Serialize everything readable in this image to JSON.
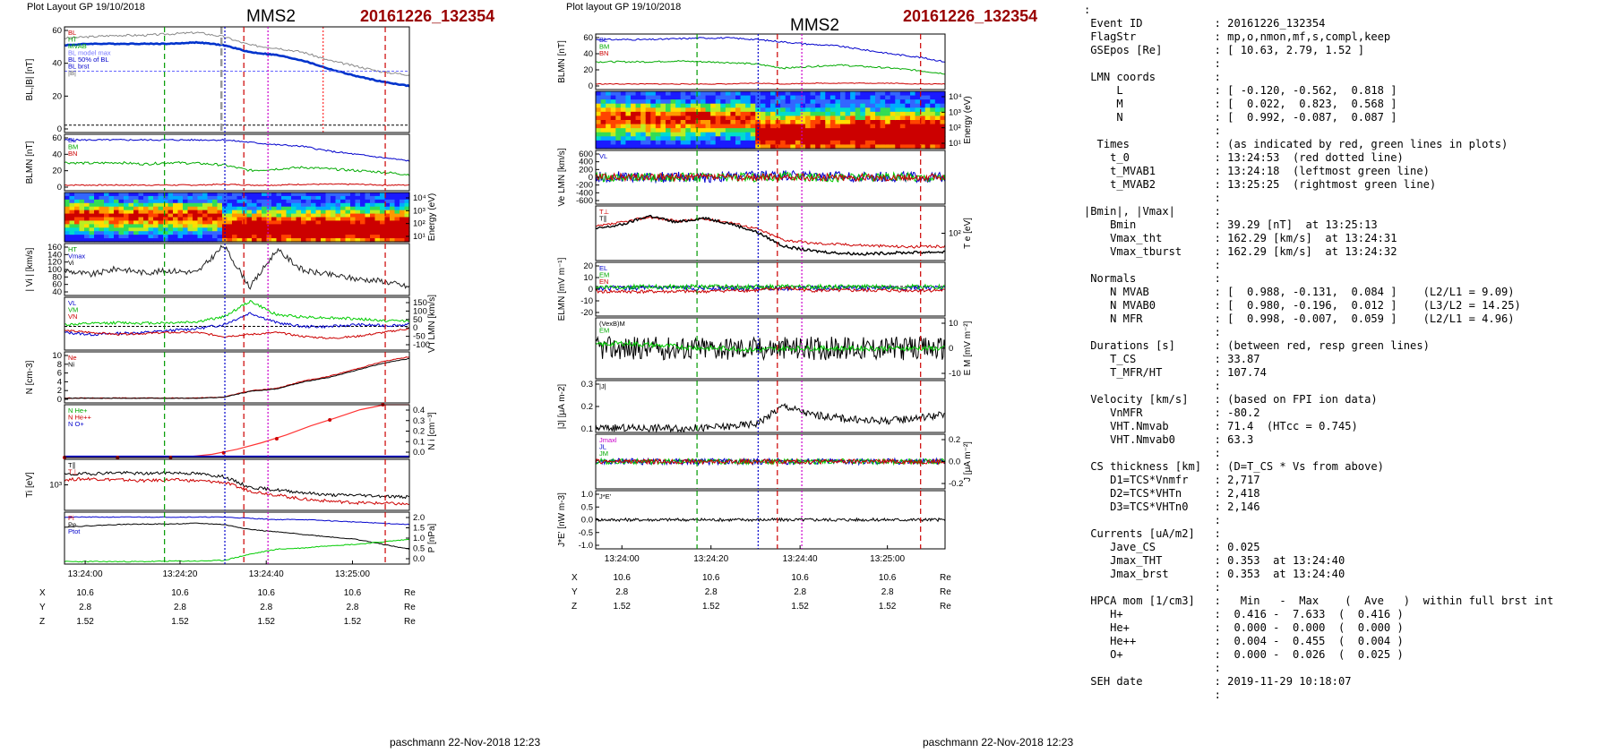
{
  "left": {
    "plot_layout": "Plot Layout GP 19/10/2018",
    "spacecraft": "MMS2",
    "event": "20161226_132354",
    "footer": "paschmann 22-Nov-2018 12:23",
    "panels": [
      {
        "ylabels": [
          "B",
          "L",
          ",|B| [nT]"
        ],
        "left_ticks": [
          "60",
          "40",
          "20",
          "0"
        ],
        "right_ticks": [],
        "legend": [
          {
            "text": "BL",
            "color": "#cc0000"
          },
          {
            "text": "HT",
            "color": "#009900"
          },
          {
            "text": "MVAB",
            "color": "#00aa00"
          },
          {
            "text": "BL model max",
            "color": "#7777ff"
          },
          {
            "text": "BL 50% of BL",
            "color": "#0000cc"
          },
          {
            "text": "BL brst",
            "color": "#0000cc"
          },
          {
            "text": "|B|",
            "color": "#666666"
          }
        ]
      },
      {
        "ylabels": [
          "B",
          "LMN",
          " [nT]"
        ],
        "left_ticks": [
          "60",
          "40",
          "20",
          "0"
        ],
        "right_ticks": [],
        "legend": [
          {
            "text": "BL",
            "color": "#0000cc"
          },
          {
            "text": "BM",
            "color": "#00aa00"
          },
          {
            "text": "BN",
            "color": "#cc0000"
          }
        ]
      },
      {
        "ylabels": [],
        "left_ticks": [],
        "right_ticks": [
          "10⁴",
          "10³",
          "10²",
          "10¹"
        ],
        "right_label": "Energy (eV)",
        "legend": []
      },
      {
        "ylabels": [
          "| V",
          "i",
          " | [km/s]"
        ],
        "left_ticks": [
          "160",
          "140",
          "120",
          "100",
          "80",
          "60",
          "40"
        ],
        "right_ticks": [],
        "legend": [
          {
            "text": "HT",
            "color": "#009900"
          },
          {
            "text": "Vmax",
            "color": "#0000cc"
          },
          {
            "text": "Vi",
            "color": "#000000"
          }
        ]
      },
      {
        "ylabels": [],
        "left_ticks": [],
        "right_ticks": [
          "150",
          "100",
          "50",
          "0",
          "-50",
          "-100"
        ],
        "right_label": "V i LMN [km/s]",
        "legend": [
          {
            "text": "VL",
            "color": "#0000cc"
          },
          {
            "text": "VM",
            "color": "#00aa00"
          },
          {
            "text": "VN",
            "color": "#cc0000"
          }
        ]
      },
      {
        "ylabels": [
          "N [cm",
          "-3",
          "]"
        ],
        "left_ticks": [
          "10",
          "8",
          "6",
          "4",
          "2",
          "0"
        ],
        "right_ticks": [],
        "legend": [
          {
            "text": "Ne",
            "color": "#cc0000"
          },
          {
            "text": "Ni",
            "color": "#000000"
          }
        ]
      },
      {
        "ylabels": [],
        "left_ticks": [],
        "right_ticks": [
          "0.4",
          "0.3",
          "0.2",
          "0.1",
          "0.0"
        ],
        "right_label": "N i [cm⁻³]",
        "legend": [
          {
            "text": "N He+",
            "color": "#00aa00"
          },
          {
            "text": "N He++",
            "color": "#cc0000"
          },
          {
            "text": "N O+",
            "color": "#0000cc"
          }
        ]
      },
      {
        "ylabels": [
          "T",
          "i",
          " [eV]"
        ],
        "left_ticks": [
          "10³"
        ],
        "right_ticks": [],
        "legend": [
          {
            "text": "T∥",
            "color": "#000000"
          },
          {
            "text": "T⊥",
            "color": "#cc0000"
          }
        ]
      },
      {
        "ylabels": [],
        "left_ticks": [],
        "right_ticks": [
          "2.0",
          "1.5",
          "1.0",
          "0.5",
          "0.0"
        ],
        "right_label": "P [nPa]",
        "legend": [
          {
            "text": "Pi",
            "color": "#cc0000"
          },
          {
            "text": "Pe",
            "color": "#000000"
          },
          {
            "text": "Ptot",
            "color": "#0000cc"
          }
        ]
      }
    ],
    "time_ticks": [
      "13:24:00",
      "13:24:20",
      "13:24:40",
      "13:25:00"
    ],
    "pos": {
      "labels": [
        "X",
        "Y",
        "Z"
      ],
      "rows": [
        [
          "10.6",
          "10.6",
          "10.6",
          "10.6"
        ],
        [
          "2.8",
          "2.8",
          "2.8",
          "2.8"
        ],
        [
          "1.52",
          "1.52",
          "1.52",
          "1.52"
        ]
      ],
      "unit": "Re"
    }
  },
  "middle": {
    "plot_layout": "Plot layout GP 19/10/2018",
    "spacecraft": "MMS2",
    "event": "20161226_132354",
    "footer": "paschmann 22-Nov-2018 12:23",
    "panels": [
      {
        "ylabels": [
          "B",
          "LMN",
          " [nT]"
        ],
        "left_ticks": [
          "60",
          "40",
          "20",
          "0"
        ],
        "right_ticks": [],
        "legend": [
          {
            "text": "BL",
            "color": "#0000cc"
          },
          {
            "text": "BM",
            "color": "#00aa00"
          },
          {
            "text": "BN",
            "color": "#cc0000"
          }
        ]
      },
      {
        "ylabels": [],
        "left_ticks": [],
        "right_ticks": [
          "10⁴",
          "10³",
          "10²",
          "10¹"
        ],
        "right_label": "Energy (eV)",
        "legend": []
      },
      {
        "ylabels": [
          "V",
          "e LMN",
          " [km/s]"
        ],
        "left_ticks": [
          "600",
          "400",
          "200",
          "0",
          "-200",
          "-400",
          "-600"
        ],
        "right_ticks": [],
        "legend": [
          {
            "text": "VL",
            "color": "#0000cc"
          }
        ]
      },
      {
        "ylabels": [],
        "left_ticks": [],
        "right_ticks": [
          "10²"
        ],
        "right_label": "T e [eV]",
        "legend": [
          {
            "text": "T⊥",
            "color": "#cc0000"
          },
          {
            "text": "T∥",
            "color": "#000000"
          }
        ]
      },
      {
        "ylabels": [
          "E",
          "LMN",
          " [mV m⁻¹]"
        ],
        "left_ticks": [
          "20",
          "10",
          "0",
          "-10",
          "-20"
        ],
        "right_ticks": [],
        "legend": [
          {
            "text": "EL",
            "color": "#0000cc"
          },
          {
            "text": "EM",
            "color": "#00aa00"
          },
          {
            "text": "EN",
            "color": "#cc0000"
          }
        ]
      },
      {
        "ylabels": [],
        "left_ticks": [],
        "right_ticks": [
          "10",
          "0",
          "-10"
        ],
        "right_label": "E M [mV m⁻²]",
        "legend": [
          {
            "text": "(VexB)M",
            "color": "#000000"
          },
          {
            "text": "EM",
            "color": "#00aa00"
          }
        ]
      },
      {
        "ylabels": [
          "|J| [μA m",
          "-2",
          "]"
        ],
        "left_ticks": [
          "0.3",
          "0.2",
          "0.1"
        ],
        "right_ticks": [],
        "legend": [
          {
            "text": "|J|",
            "color": "#000000"
          }
        ]
      },
      {
        "ylabels": [],
        "left_ticks": [],
        "right_ticks": [
          "0.2",
          "0.0",
          "-0.2"
        ],
        "right_label": "J [μA m⁻²]",
        "legend": [
          {
            "text": "Jmaxl",
            "color": "#cc00cc"
          },
          {
            "text": "JL",
            "color": "#0000cc"
          },
          {
            "text": "JM",
            "color": "#00aa00"
          }
        ]
      },
      {
        "ylabels": [
          "J*E' [nW m",
          "-3",
          "]"
        ],
        "left_ticks": [
          "1.0",
          "0.5",
          "0.0",
          "-0.5",
          "-1.0"
        ],
        "right_ticks": [],
        "legend": [
          {
            "text": "J*E'",
            "color": "#000000"
          }
        ]
      }
    ],
    "time_ticks": [
      "13:24:00",
      "13:24:20",
      "13:24:40",
      "13:25:00"
    ],
    "pos": {
      "labels": [
        "X",
        "Y",
        "Z"
      ],
      "rows": [
        [
          "10.6",
          "10.6",
          "10.6",
          "10.6"
        ],
        [
          "2.8",
          "2.8",
          "2.8",
          "2.8"
        ],
        [
          "1.52",
          "1.52",
          "1.52",
          "1.52"
        ]
      ],
      "unit": "Re"
    }
  },
  "info_lines": [
    ":",
    " Event ID           : 20161226_132354",
    " FlagStr            : mp,o,nmon,mf,s,compl,keep",
    " GSEpos [Re]        : [ 10.63, 2.79, 1.52 ]",
    "                    :",
    " LMN coords         :",
    "     L              : [ -0.120, -0.562,  0.818 ]",
    "     M              : [  0.022,  0.823,  0.568 ]",
    "     N              : [  0.992, -0.087,  0.087 ]",
    "                    :",
    "  Times             : (as indicated by red, green lines in plots)",
    "    t_0             : 13:24:53  (red dotted line)",
    "    t_MVAB1         : 13:24:18  (leftmost green line)",
    "    t_MVAB2         : 13:25:25  (rightmost green line)",
    "                    :",
    "|Bmin|, |Vmax|      :",
    "    Bmin            : 39.29 [nT]  at 13:25:13",
    "    Vmax_tht        : 162.29 [km/s]  at 13:24:31",
    "    Vmax_tburst     : 162.29 [km/s]  at 13:24:32",
    "                    :",
    " Normals            :",
    "    N MVAB          : [  0.988, -0.131,  0.084 ]    (L2/L1 = 9.09)",
    "    N MVAB0         : [  0.980, -0.196,  0.012 ]    (L3/L2 = 14.25)",
    "    N MFR           : [  0.998, -0.007,  0.059 ]    (L2/L1 = 4.96)",
    "                    :",
    " Durations [s]      : (between red, resp green lines)",
    "    T_CS            : 33.87",
    "    T_MFR/HT        : 107.74",
    "                    :",
    " Velocity [km/s]    : (based on FPI ion data)",
    "    VnMFR           : -80.2",
    "    VHT.Nmvab       : 71.4  (HTcc = 0.745)",
    "    VHT.Nmvab0      : 63.3",
    "                    :",
    " CS thickness [km]  : (D=T_CS * Vs from above)",
    "    D1=TCS*Vnmfr    : 2,717",
    "    D2=TCS*VHTn     : 2,418",
    "    D3=TCS*VHTn0    : 2,146",
    "                    :",
    " Currents [uA/m2]   :",
    "    Jave_CS         : 0.025",
    "    Jmax_THT        : 0.353  at 13:24:40",
    "    Jmax_brst       : 0.353  at 13:24:40",
    "                    :",
    " HPCA mom [1/cm3]   :   Min   -  Max    (  Ave   )  within full brst int",
    "    H+              :  0.416 -  7.633  (  0.416 )",
    "    He+             :  0.000 -  0.000  (  0.000 )",
    "    He++            :  0.004 -  0.455  (  0.004 )",
    "    O+              :  0.000 -  0.026  (  0.025 )",
    "                    :",
    " SEH date           : 2019-11-29 10:18:07",
    "                    :"
  ],
  "chart_data": {
    "type": "line",
    "title": "MMS2",
    "time_range": [
      "13:23:54",
      "13:25:35"
    ],
    "series": [
      {
        "name": "|B|",
        "values": [
          62,
          63,
          64,
          64,
          65,
          66,
          63,
          57,
          55,
          52,
          46,
          42,
          38,
          36
        ]
      },
      {
        "name": "BL",
        "values": [
          57,
          58,
          58,
          58,
          58,
          59,
          57,
          52,
          50,
          46,
          40,
          35,
          31,
          28
        ]
      },
      {
        "name": "N",
        "values": [
          1,
          1,
          1,
          1,
          1,
          1,
          1.2,
          2.5,
          3,
          4.5,
          5.5,
          7,
          8.5,
          9.5
        ]
      },
      {
        "name": "N He++",
        "values": [
          0,
          0,
          0,
          0,
          0,
          0.01,
          0.04,
          0.1,
          0.16,
          0.25,
          0.32,
          0.4,
          0.45,
          0.45
        ]
      },
      {
        "name": "|Vi|",
        "values": [
          100,
          90,
          105,
          95,
          100,
          95,
          160,
          60,
          150,
          100,
          90,
          80,
          75,
          60
        ]
      }
    ]
  }
}
